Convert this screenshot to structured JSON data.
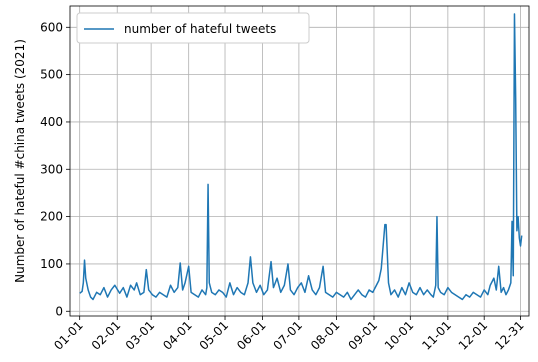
{
  "chart_data": {
    "type": "line",
    "title": "",
    "xlabel": "",
    "ylabel": "Number of hateful #china tweets (2021)",
    "ylim": [
      -10,
      645
    ],
    "xlim": [
      "2020-12-24",
      "2022-01-07"
    ],
    "grid": true,
    "legend_position": "top-left",
    "y_ticks": [
      0,
      100,
      200,
      300,
      400,
      500,
      600
    ],
    "x_ticks": [
      {
        "date": "2021-01-01",
        "label": "01-01"
      },
      {
        "date": "2021-02-01",
        "label": "02-01"
      },
      {
        "date": "2021-03-01",
        "label": "03-01"
      },
      {
        "date": "2021-04-01",
        "label": "04-01"
      },
      {
        "date": "2021-05-01",
        "label": "05-01"
      },
      {
        "date": "2021-06-01",
        "label": "06-01"
      },
      {
        "date": "2021-07-01",
        "label": "07-01"
      },
      {
        "date": "2021-08-01",
        "label": "08-01"
      },
      {
        "date": "2021-09-01",
        "label": "09-01"
      },
      {
        "date": "2021-10-01",
        "label": "10-01"
      },
      {
        "date": "2021-11-01",
        "label": "11-01"
      },
      {
        "date": "2021-12-01",
        "label": "12-01"
      },
      {
        "date": "2021-12-31",
        "label": "12-31"
      }
    ],
    "series": [
      {
        "name": "number of hateful tweets",
        "color": "#1f77b4",
        "points": [
          [
            "2021-01-01",
            38
          ],
          [
            "2021-01-03",
            42
          ],
          [
            "2021-01-04",
            60
          ],
          [
            "2021-01-05",
            108
          ],
          [
            "2021-01-06",
            70
          ],
          [
            "2021-01-08",
            45
          ],
          [
            "2021-01-10",
            30
          ],
          [
            "2021-01-12",
            25
          ],
          [
            "2021-01-15",
            40
          ],
          [
            "2021-01-18",
            35
          ],
          [
            "2021-01-21",
            50
          ],
          [
            "2021-01-24",
            30
          ],
          [
            "2021-01-27",
            45
          ],
          [
            "2021-01-30",
            55
          ],
          [
            "2021-02-03",
            38
          ],
          [
            "2021-02-06",
            50
          ],
          [
            "2021-02-09",
            30
          ],
          [
            "2021-02-12",
            55
          ],
          [
            "2021-02-15",
            45
          ],
          [
            "2021-02-17",
            60
          ],
          [
            "2021-02-20",
            35
          ],
          [
            "2021-02-23",
            40
          ],
          [
            "2021-02-25",
            88
          ],
          [
            "2021-02-27",
            45
          ],
          [
            "2021-03-02",
            35
          ],
          [
            "2021-03-05",
            30
          ],
          [
            "2021-03-08",
            40
          ],
          [
            "2021-03-11",
            35
          ],
          [
            "2021-03-14",
            30
          ],
          [
            "2021-03-17",
            55
          ],
          [
            "2021-03-20",
            40
          ],
          [
            "2021-03-23",
            50
          ],
          [
            "2021-03-25",
            102
          ],
          [
            "2021-03-27",
            45
          ],
          [
            "2021-03-29",
            60
          ],
          [
            "2021-04-01",
            95
          ],
          [
            "2021-04-03",
            40
          ],
          [
            "2021-04-06",
            35
          ],
          [
            "2021-04-09",
            30
          ],
          [
            "2021-04-12",
            45
          ],
          [
            "2021-04-15",
            35
          ],
          [
            "2021-04-16",
            50
          ],
          [
            "2021-04-17",
            268
          ],
          [
            "2021-04-18",
            60
          ],
          [
            "2021-04-20",
            40
          ],
          [
            "2021-04-23",
            35
          ],
          [
            "2021-04-26",
            45
          ],
          [
            "2021-04-29",
            40
          ],
          [
            "2021-05-02",
            30
          ],
          [
            "2021-05-05",
            60
          ],
          [
            "2021-05-08",
            35
          ],
          [
            "2021-05-11",
            50
          ],
          [
            "2021-05-14",
            40
          ],
          [
            "2021-05-17",
            35
          ],
          [
            "2021-05-20",
            60
          ],
          [
            "2021-05-22",
            115
          ],
          [
            "2021-05-24",
            60
          ],
          [
            "2021-05-27",
            40
          ],
          [
            "2021-05-30",
            55
          ],
          [
            "2021-06-02",
            35
          ],
          [
            "2021-06-05",
            45
          ],
          [
            "2021-06-08",
            105
          ],
          [
            "2021-06-10",
            50
          ],
          [
            "2021-06-13",
            70
          ],
          [
            "2021-06-16",
            40
          ],
          [
            "2021-06-19",
            55
          ],
          [
            "2021-06-22",
            100
          ],
          [
            "2021-06-24",
            45
          ],
          [
            "2021-06-27",
            35
          ],
          [
            "2021-06-30",
            50
          ],
          [
            "2021-07-03",
            60
          ],
          [
            "2021-07-06",
            40
          ],
          [
            "2021-07-09",
            75
          ],
          [
            "2021-07-12",
            45
          ],
          [
            "2021-07-15",
            35
          ],
          [
            "2021-07-18",
            50
          ],
          [
            "2021-07-21",
            95
          ],
          [
            "2021-07-23",
            40
          ],
          [
            "2021-07-26",
            35
          ],
          [
            "2021-07-29",
            30
          ],
          [
            "2021-08-01",
            40
          ],
          [
            "2021-08-04",
            35
          ],
          [
            "2021-08-07",
            30
          ],
          [
            "2021-08-10",
            40
          ],
          [
            "2021-08-13",
            25
          ],
          [
            "2021-08-16",
            35
          ],
          [
            "2021-08-19",
            45
          ],
          [
            "2021-08-22",
            35
          ],
          [
            "2021-08-25",
            30
          ],
          [
            "2021-08-28",
            45
          ],
          [
            "2021-08-31",
            40
          ],
          [
            "2021-09-02",
            50
          ],
          [
            "2021-09-05",
            65
          ],
          [
            "2021-09-07",
            90
          ],
          [
            "2021-09-10",
            183
          ],
          [
            "2021-09-11",
            183
          ],
          [
            "2021-09-13",
            60
          ],
          [
            "2021-09-15",
            35
          ],
          [
            "2021-09-18",
            45
          ],
          [
            "2021-09-21",
            30
          ],
          [
            "2021-09-24",
            50
          ],
          [
            "2021-09-27",
            35
          ],
          [
            "2021-09-30",
            60
          ],
          [
            "2021-10-03",
            40
          ],
          [
            "2021-10-06",
            35
          ],
          [
            "2021-10-09",
            50
          ],
          [
            "2021-10-12",
            35
          ],
          [
            "2021-10-15",
            45
          ],
          [
            "2021-10-18",
            35
          ],
          [
            "2021-10-20",
            30
          ],
          [
            "2021-10-22",
            55
          ],
          [
            "2021-10-23",
            200
          ],
          [
            "2021-10-24",
            50
          ],
          [
            "2021-10-26",
            40
          ],
          [
            "2021-10-29",
            35
          ],
          [
            "2021-11-01",
            50
          ],
          [
            "2021-11-04",
            40
          ],
          [
            "2021-11-07",
            35
          ],
          [
            "2021-11-10",
            30
          ],
          [
            "2021-11-13",
            25
          ],
          [
            "2021-11-16",
            35
          ],
          [
            "2021-11-19",
            30
          ],
          [
            "2021-11-22",
            40
          ],
          [
            "2021-11-25",
            35
          ],
          [
            "2021-11-28",
            30
          ],
          [
            "2021-12-01",
            45
          ],
          [
            "2021-12-04",
            35
          ],
          [
            "2021-12-06",
            55
          ],
          [
            "2021-12-09",
            70
          ],
          [
            "2021-12-11",
            45
          ],
          [
            "2021-12-13",
            95
          ],
          [
            "2021-12-15",
            40
          ],
          [
            "2021-12-17",
            50
          ],
          [
            "2021-12-19",
            35
          ],
          [
            "2021-12-21",
            45
          ],
          [
            "2021-12-23",
            60
          ],
          [
            "2021-12-24",
            190
          ],
          [
            "2021-12-25",
            75
          ],
          [
            "2021-12-26",
            628
          ],
          [
            "2021-12-27",
            450
          ],
          [
            "2021-12-28",
            170
          ],
          [
            "2021-12-29",
            200
          ],
          [
            "2021-12-30",
            155
          ],
          [
            "2021-12-31",
            138
          ],
          [
            "2022-01-01",
            160
          ]
        ]
      }
    ]
  }
}
